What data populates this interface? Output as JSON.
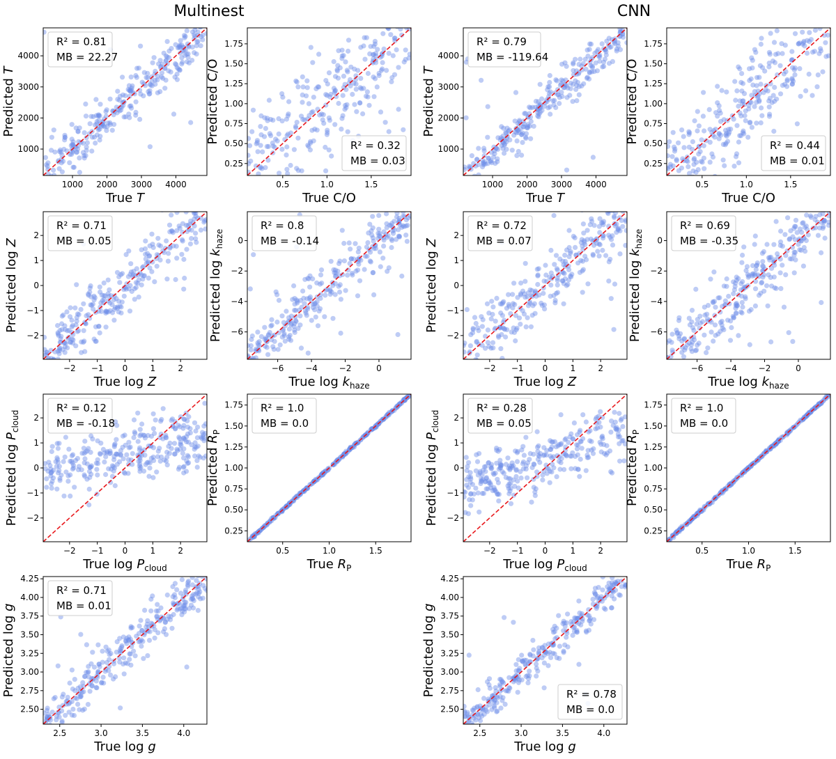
{
  "titles": {
    "left": "Multinest",
    "right": "CNN"
  },
  "colors": {
    "points": "#6f8fe8",
    "identity": "#e8161a",
    "axes": "#000000",
    "legend_border": "#cccccc"
  },
  "chart_data": [
    {
      "id": "mn-T",
      "method": "Multinest",
      "type": "scatter",
      "xlabel": "True T",
      "ylabel": "Predicted T",
      "label_var": "T",
      "label_style": "italic",
      "xlim": [
        150,
        4900
      ],
      "ylim": [
        150,
        4900
      ],
      "xticks": [
        1000,
        2000,
        3000,
        4000
      ],
      "yticks": [
        1000,
        2000,
        3000,
        4000
      ],
      "tick_labels": [
        "1000",
        "2000",
        "3000",
        "4000"
      ],
      "stats": {
        "r2": "R² = 0.81",
        "mb": "MB = 22.27"
      },
      "legend_pos": "top-left",
      "scatter_spread": 0.35,
      "scatter_bias": 0
    },
    {
      "id": "mn-CO",
      "method": "Multinest",
      "type": "scatter",
      "xlabel": "True C/O",
      "ylabel": "Predicted C/O",
      "label_var": "C/O",
      "label_style": "roman",
      "xlim": [
        0.1,
        1.95
      ],
      "ylim": [
        0.1,
        1.95
      ],
      "xticks": [
        0.5,
        1.0,
        1.5
      ],
      "xtick_labels": [
        "0.5",
        "1.0",
        "1.5"
      ],
      "yticks": [
        0.25,
        0.5,
        0.75,
        1.0,
        1.25,
        1.5,
        1.75
      ],
      "ytick_labels": [
        "0.25",
        "0.50",
        "0.75",
        "1.00",
        "1.25",
        "1.50",
        "1.75"
      ],
      "stats": {
        "r2": "R² = 0.32",
        "mb": "MB = 0.03"
      },
      "legend_pos": "bottom-right",
      "scatter_spread": 0.9,
      "scatter_bias": 0
    },
    {
      "id": "cnn-T",
      "method": "CNN",
      "type": "scatter",
      "xlabel": "True T",
      "ylabel": "Predicted T",
      "label_var": "T",
      "label_style": "italic",
      "xlim": [
        150,
        4900
      ],
      "ylim": [
        150,
        4900
      ],
      "xticks": [
        1000,
        2000,
        3000,
        4000
      ],
      "yticks": [
        1000,
        2000,
        3000,
        4000
      ],
      "tick_labels": [
        "1000",
        "2000",
        "3000",
        "4000"
      ],
      "stats": {
        "r2": "R² = 0.79",
        "mb": "MB = -119.64"
      },
      "legend_pos": "top-left",
      "scatter_spread": 0.3,
      "scatter_bias": -0.02
    },
    {
      "id": "cnn-CO",
      "method": "CNN",
      "type": "scatter",
      "xlabel": "True C/O",
      "ylabel": "Predicted C/O",
      "label_var": "C/O",
      "label_style": "roman",
      "xlim": [
        0.1,
        1.95
      ],
      "ylim": [
        0.1,
        1.95
      ],
      "xticks": [
        0.5,
        1.0,
        1.5
      ],
      "xtick_labels": [
        "0.5",
        "1.0",
        "1.5"
      ],
      "yticks": [
        0.25,
        0.5,
        0.75,
        1.0,
        1.25,
        1.5,
        1.75
      ],
      "ytick_labels": [
        "0.25",
        "0.50",
        "0.75",
        "1.00",
        "1.25",
        "1.50",
        "1.75"
      ],
      "stats": {
        "r2": "R² = 0.44",
        "mb": "MB = 0.01"
      },
      "legend_pos": "bottom-right",
      "scatter_spread": 0.7,
      "scatter_bias": 0
    },
    {
      "id": "mn-Z",
      "method": "Multinest",
      "type": "scatter",
      "xlabel": "True log Z",
      "ylabel": "Predicted log Z",
      "label_var": "Z",
      "label_style": "log-italic",
      "xlim": [
        -2.95,
        2.95
      ],
      "ylim": [
        -2.95,
        2.95
      ],
      "xticks": [
        -2,
        -1,
        0,
        1,
        2
      ],
      "yticks": [
        -2,
        -1,
        0,
        1,
        2
      ],
      "tick_labels": [
        "−2",
        "−1",
        "0",
        "1",
        "2"
      ],
      "stats": {
        "r2": "R² = 0.71",
        "mb": "MB = 0.05"
      },
      "legend_pos": "top-left",
      "scatter_spread": 0.45,
      "scatter_bias": 0
    },
    {
      "id": "mn-khaze",
      "method": "Multinest",
      "type": "scatter",
      "xlabel": "True log k_haze",
      "ylabel": "Predicted log k_haze",
      "label_var": "k",
      "label_sub": "haze",
      "label_style": "log-sub",
      "xlim": [
        -7.8,
        1.9
      ],
      "ylim": [
        -7.8,
        1.9
      ],
      "xticks": [
        -6,
        -4,
        -2,
        0
      ],
      "yticks": [
        -6,
        -4,
        -2,
        0
      ],
      "tick_labels": [
        "−6",
        "−4",
        "−2",
        "0"
      ],
      "stats": {
        "r2": "R² = 0.8",
        "mb": "MB = -0.14"
      },
      "legend_pos": "top-left",
      "scatter_spread": 0.45,
      "scatter_bias": 0
    },
    {
      "id": "cnn-Z",
      "method": "CNN",
      "type": "scatter",
      "xlabel": "True log Z",
      "ylabel": "Predicted log Z",
      "label_var": "Z",
      "label_style": "log-italic",
      "xlim": [
        -2.95,
        2.95
      ],
      "ylim": [
        -2.95,
        2.95
      ],
      "xticks": [
        -2,
        -1,
        0,
        1,
        2
      ],
      "yticks": [
        -2,
        -1,
        0,
        1,
        2
      ],
      "tick_labels": [
        "−2",
        "−1",
        "0",
        "1",
        "2"
      ],
      "stats": {
        "r2": "R² = 0.72",
        "mb": "MB = 0.07"
      },
      "legend_pos": "top-left",
      "scatter_spread": 0.5,
      "scatter_bias": 0
    },
    {
      "id": "cnn-khaze",
      "method": "CNN",
      "type": "scatter",
      "xlabel": "True log k_haze",
      "ylabel": "Predicted log k_haze",
      "label_var": "k",
      "label_sub": "haze",
      "label_style": "log-sub",
      "xlim": [
        -7.8,
        1.9
      ],
      "ylim": [
        -7.8,
        1.9
      ],
      "xticks": [
        -6,
        -4,
        -2,
        0
      ],
      "yticks": [
        -6,
        -4,
        -2,
        0
      ],
      "tick_labels": [
        "−6",
        "−4",
        "−2",
        "0"
      ],
      "stats": {
        "r2": "R² = 0.69",
        "mb": "MB = -0.35"
      },
      "legend_pos": "top-left",
      "scatter_spread": 0.5,
      "scatter_bias": 0
    },
    {
      "id": "mn-Pcloud",
      "method": "Multinest",
      "type": "scatter",
      "xlabel": "True log P_cloud",
      "ylabel": "Predicted log P_cloud",
      "label_var": "P",
      "label_sub": "cloud",
      "label_style": "log-sub",
      "xlim": [
        -2.95,
        2.95
      ],
      "ylim": [
        -2.95,
        2.95
      ],
      "xticks": [
        -2,
        -1,
        0,
        1,
        2
      ],
      "yticks": [
        -2,
        -1,
        0,
        1,
        2
      ],
      "tick_labels": [
        "−2",
        "−1",
        "0",
        "1",
        "2"
      ],
      "stats": {
        "r2": "R² = 0.12",
        "mb": "MB = -0.18"
      },
      "legend_pos": "top-left",
      "scatter_spread": 0.95,
      "scatter_bias": 0,
      "flatten": 0.75
    },
    {
      "id": "mn-Rp",
      "method": "Multinest",
      "type": "scatter",
      "xlabel": "True R_P",
      "ylabel": "Predicted R_P",
      "label_var": "R",
      "label_sub": "P",
      "label_style": "italic-sub",
      "xlim": [
        0.12,
        1.88
      ],
      "ylim": [
        0.12,
        1.88
      ],
      "xticks": [
        0.5,
        1.0,
        1.5
      ],
      "xtick_labels": [
        "0.5",
        "1.0",
        "1.5"
      ],
      "yticks": [
        0.25,
        0.5,
        0.75,
        1.0,
        1.25,
        1.5,
        1.75
      ],
      "ytick_labels": [
        "0.25",
        "0.50",
        "0.75",
        "1.00",
        "1.25",
        "1.50",
        "1.75"
      ],
      "stats": {
        "r2": "R² = 1.0",
        "mb": "MB = 0.0"
      },
      "legend_pos": "top-left",
      "scatter_spread": 0.02,
      "scatter_bias": 0
    },
    {
      "id": "cnn-Pcloud",
      "method": "CNN",
      "type": "scatter",
      "xlabel": "True log P_cloud",
      "ylabel": "Predicted log P_cloud",
      "label_var": "P",
      "label_sub": "cloud",
      "label_style": "log-sub",
      "xlim": [
        -2.95,
        2.95
      ],
      "ylim": [
        -2.95,
        2.95
      ],
      "xticks": [
        -2,
        -1,
        0,
        1,
        2
      ],
      "yticks": [
        -2,
        -1,
        0,
        1,
        2
      ],
      "tick_labels": [
        "−2",
        "−1",
        "0",
        "1",
        "2"
      ],
      "stats": {
        "r2": "R² = 0.28",
        "mb": "MB = 0.05"
      },
      "legend_pos": "top-left",
      "scatter_spread": 0.75,
      "scatter_bias": 0,
      "flatten": 0.6
    },
    {
      "id": "cnn-Rp",
      "method": "CNN",
      "type": "scatter",
      "xlabel": "True R_P",
      "ylabel": "Predicted R_P",
      "label_var": "R",
      "label_sub": "P",
      "label_style": "italic-sub",
      "xlim": [
        0.12,
        1.88
      ],
      "ylim": [
        0.12,
        1.88
      ],
      "xticks": [
        0.5,
        1.0,
        1.5
      ],
      "xtick_labels": [
        "0.5",
        "1.0",
        "1.5"
      ],
      "yticks": [
        0.25,
        0.5,
        0.75,
        1.0,
        1.25,
        1.5,
        1.75
      ],
      "ytick_labels": [
        "0.25",
        "0.50",
        "0.75",
        "1.00",
        "1.25",
        "1.50",
        "1.75"
      ],
      "stats": {
        "r2": "R² = 1.0",
        "mb": "MB = 0.0"
      },
      "legend_pos": "top-left",
      "scatter_spread": 0.02,
      "scatter_bias": 0
    },
    {
      "id": "mn-g",
      "method": "Multinest",
      "type": "scatter",
      "xlabel": "True log g",
      "ylabel": "Predicted log g",
      "label_var": "g",
      "label_style": "log-italic",
      "xlim": [
        2.3,
        4.28
      ],
      "ylim": [
        2.3,
        4.28
      ],
      "xticks": [
        2.5,
        3.0,
        3.5,
        4.0
      ],
      "xtick_labels": [
        "2.5",
        "3.0",
        "3.5",
        "4.0"
      ],
      "yticks": [
        2.5,
        2.75,
        3.0,
        3.25,
        3.5,
        3.75,
        4.0,
        4.25
      ],
      "ytick_labels": [
        "2.50",
        "2.75",
        "3.00",
        "3.25",
        "3.50",
        "3.75",
        "4.00",
        "4.25"
      ],
      "stats": {
        "r2": "R² = 0.71",
        "mb": "MB = 0.01"
      },
      "legend_pos": "top-left",
      "scatter_spread": 0.35,
      "scatter_bias": 0
    },
    {
      "id": "cnn-g",
      "method": "CNN",
      "type": "scatter",
      "xlabel": "True log g",
      "ylabel": "Predicted log g",
      "label_var": "g",
      "label_style": "log-italic",
      "xlim": [
        2.3,
        4.28
      ],
      "ylim": [
        2.3,
        4.28
      ],
      "xticks": [
        2.5,
        3.0,
        3.5,
        4.0
      ],
      "xtick_labels": [
        "2.5",
        "3.0",
        "3.5",
        "4.0"
      ],
      "yticks": [
        2.5,
        2.75,
        3.0,
        3.25,
        3.5,
        3.75,
        4.0,
        4.25
      ],
      "ytick_labels": [
        "2.50",
        "2.75",
        "3.00",
        "3.25",
        "3.50",
        "3.75",
        "4.00",
        "4.25"
      ],
      "stats": {
        "r2": "R² = 0.78",
        "mb": "MB = 0.0"
      },
      "legend_pos": "bottom-right",
      "scatter_spread": 0.3,
      "scatter_bias": 0
    }
  ]
}
